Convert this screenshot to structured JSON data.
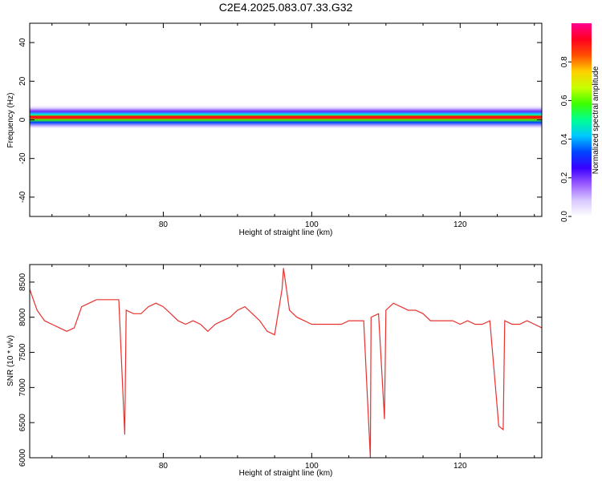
{
  "title": "C2E4.2025.083.07.33.G32",
  "colors": {
    "snr_line": "#e8302e",
    "background": "#ffffff",
    "axes": "#000000"
  },
  "chart_data": [
    {
      "type": "heatmap",
      "title": "C2E4.2025.083.07.33.G32",
      "xlabel": "Height of straight line (km)",
      "ylabel": "Frequency (Hz)",
      "xlim": [
        62,
        131
      ],
      "ylim": [
        -50,
        50
      ],
      "xticks": [
        80,
        100,
        120
      ],
      "yticks": [
        -40,
        -20,
        0,
        20,
        40
      ],
      "colorbar": {
        "label": "Normalized spectral amplitude",
        "range": [
          0,
          1
        ],
        "ticks": [
          "0.0",
          "0.2",
          "0.4",
          "0.6",
          "0.8"
        ],
        "colormap": [
          "#ffffff",
          "#d9c8ff",
          "#9a5cff",
          "#3a00ff",
          "#0044ff",
          "#00c8ff",
          "#00ff90",
          "#3cff00",
          "#c8ff00",
          "#ffd000",
          "#ff5000",
          "#ff0020",
          "#ff0090"
        ]
      },
      "band": {
        "center_hz": 1.5,
        "halfwidth_hz": 4
      }
    },
    {
      "type": "line",
      "xlabel": "Height of straight line (km)",
      "ylabel": "SNR (10 * v/v)",
      "xlim": [
        62,
        131
      ],
      "ylim": [
        6000,
        8750
      ],
      "xticks": [
        80,
        100,
        120
      ],
      "yticks": [
        6000,
        6500,
        7000,
        7500,
        8000,
        8500
      ],
      "series": [
        {
          "x": [
            62,
            63,
            64,
            65,
            66,
            67,
            68,
            69,
            70,
            71,
            72,
            73,
            74,
            74.8,
            75,
            76,
            77,
            78,
            79,
            80,
            81,
            82,
            83,
            84,
            85,
            86,
            87,
            88,
            89,
            90,
            91,
            92,
            93,
            94,
            95,
            96,
            96.2,
            97,
            98,
            99,
            100,
            101,
            102,
            103,
            104,
            105,
            106,
            107,
            107.9,
            108,
            109,
            109.8,
            110,
            111,
            112,
            113,
            114,
            115,
            116,
            117,
            118,
            119,
            120,
            121,
            122,
            123,
            124,
            125.2,
            125.8,
            126,
            127,
            128,
            129,
            130,
            131
          ],
          "y": [
            8400,
            8100,
            7950,
            7900,
            7850,
            7800,
            7850,
            8150,
            8200,
            8250,
            8250,
            8250,
            8250,
            6330,
            8100,
            8050,
            8050,
            8150,
            8200,
            8150,
            8050,
            7950,
            7900,
            7950,
            7900,
            7800,
            7900,
            7950,
            8000,
            8100,
            8150,
            8050,
            7950,
            7800,
            7750,
            8400,
            8700,
            8100,
            8000,
            7950,
            7900,
            7900,
            7900,
            7900,
            7900,
            7950,
            7950,
            7950,
            6000,
            8000,
            8050,
            6550,
            8100,
            8200,
            8150,
            8100,
            8100,
            8050,
            7950,
            7950,
            7950,
            7950,
            7900,
            7950,
            7900,
            7900,
            7950,
            6450,
            6400,
            7950,
            7900,
            7900,
            7950,
            7900,
            7850
          ]
        }
      ]
    }
  ]
}
